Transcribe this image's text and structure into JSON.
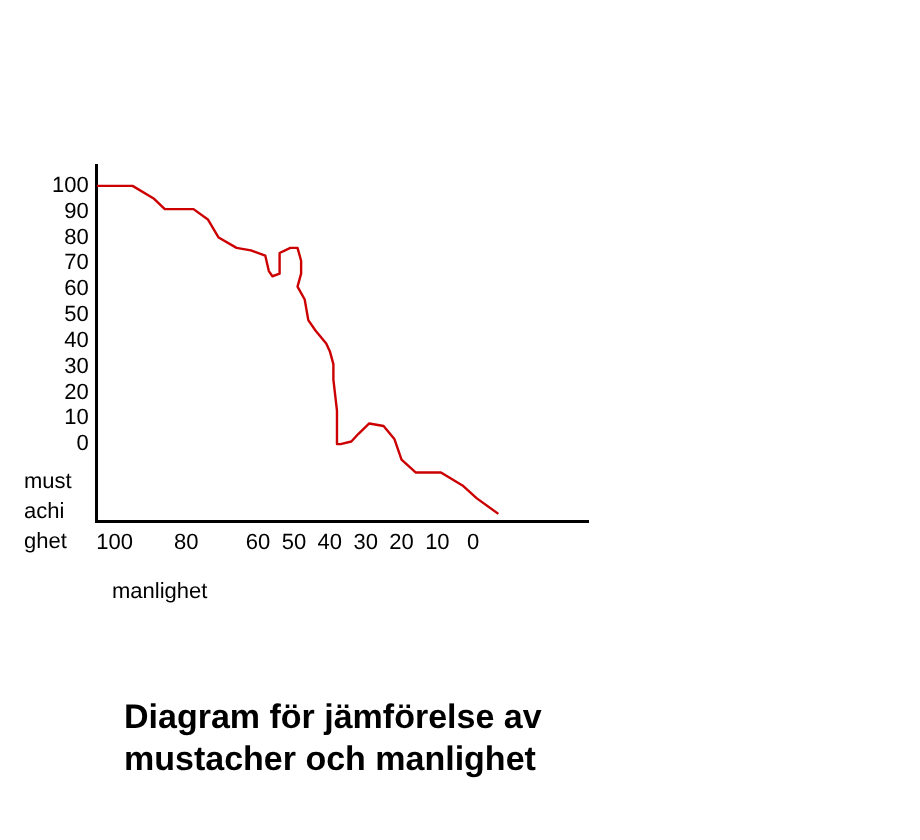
{
  "chart_data": {
    "type": "line",
    "title": "Diagram för jämförelse av mustacher och manlighet",
    "xlabel": "manlighet",
    "ylabel": "mustachighet",
    "x": [
      105,
      95,
      89,
      86,
      78,
      74,
      71,
      66,
      62,
      58,
      57,
      56,
      54,
      54,
      51,
      49,
      48,
      48,
      49,
      47,
      46,
      44,
      41,
      40,
      39,
      39,
      38,
      38,
      37,
      34,
      32,
      29,
      25,
      22,
      20,
      16,
      9,
      3,
      -1,
      -7
    ],
    "series": [
      {
        "color": "#cc0000",
        "values": [
          100,
          100,
          95,
          91,
          91,
          87,
          80,
          76,
          75,
          73,
          67,
          65,
          66,
          74,
          76,
          76,
          71,
          66,
          61,
          56,
          48,
          44,
          39,
          36,
          31,
          25,
          13,
          0,
          0,
          1,
          4,
          8,
          7,
          2,
          -6,
          -11,
          -11,
          -16,
          -21,
          -27
        ]
      }
    ],
    "xlim": [
      105,
      -32
    ],
    "ylim": [
      -30,
      108
    ],
    "xticks": [
      100,
      80,
      60,
      50,
      40,
      30,
      20,
      10,
      0
    ],
    "yticks": [
      100,
      90,
      80,
      70,
      60,
      50,
      40,
      30,
      20,
      10,
      0
    ],
    "marker": "none",
    "legend": false,
    "grid": false
  }
}
